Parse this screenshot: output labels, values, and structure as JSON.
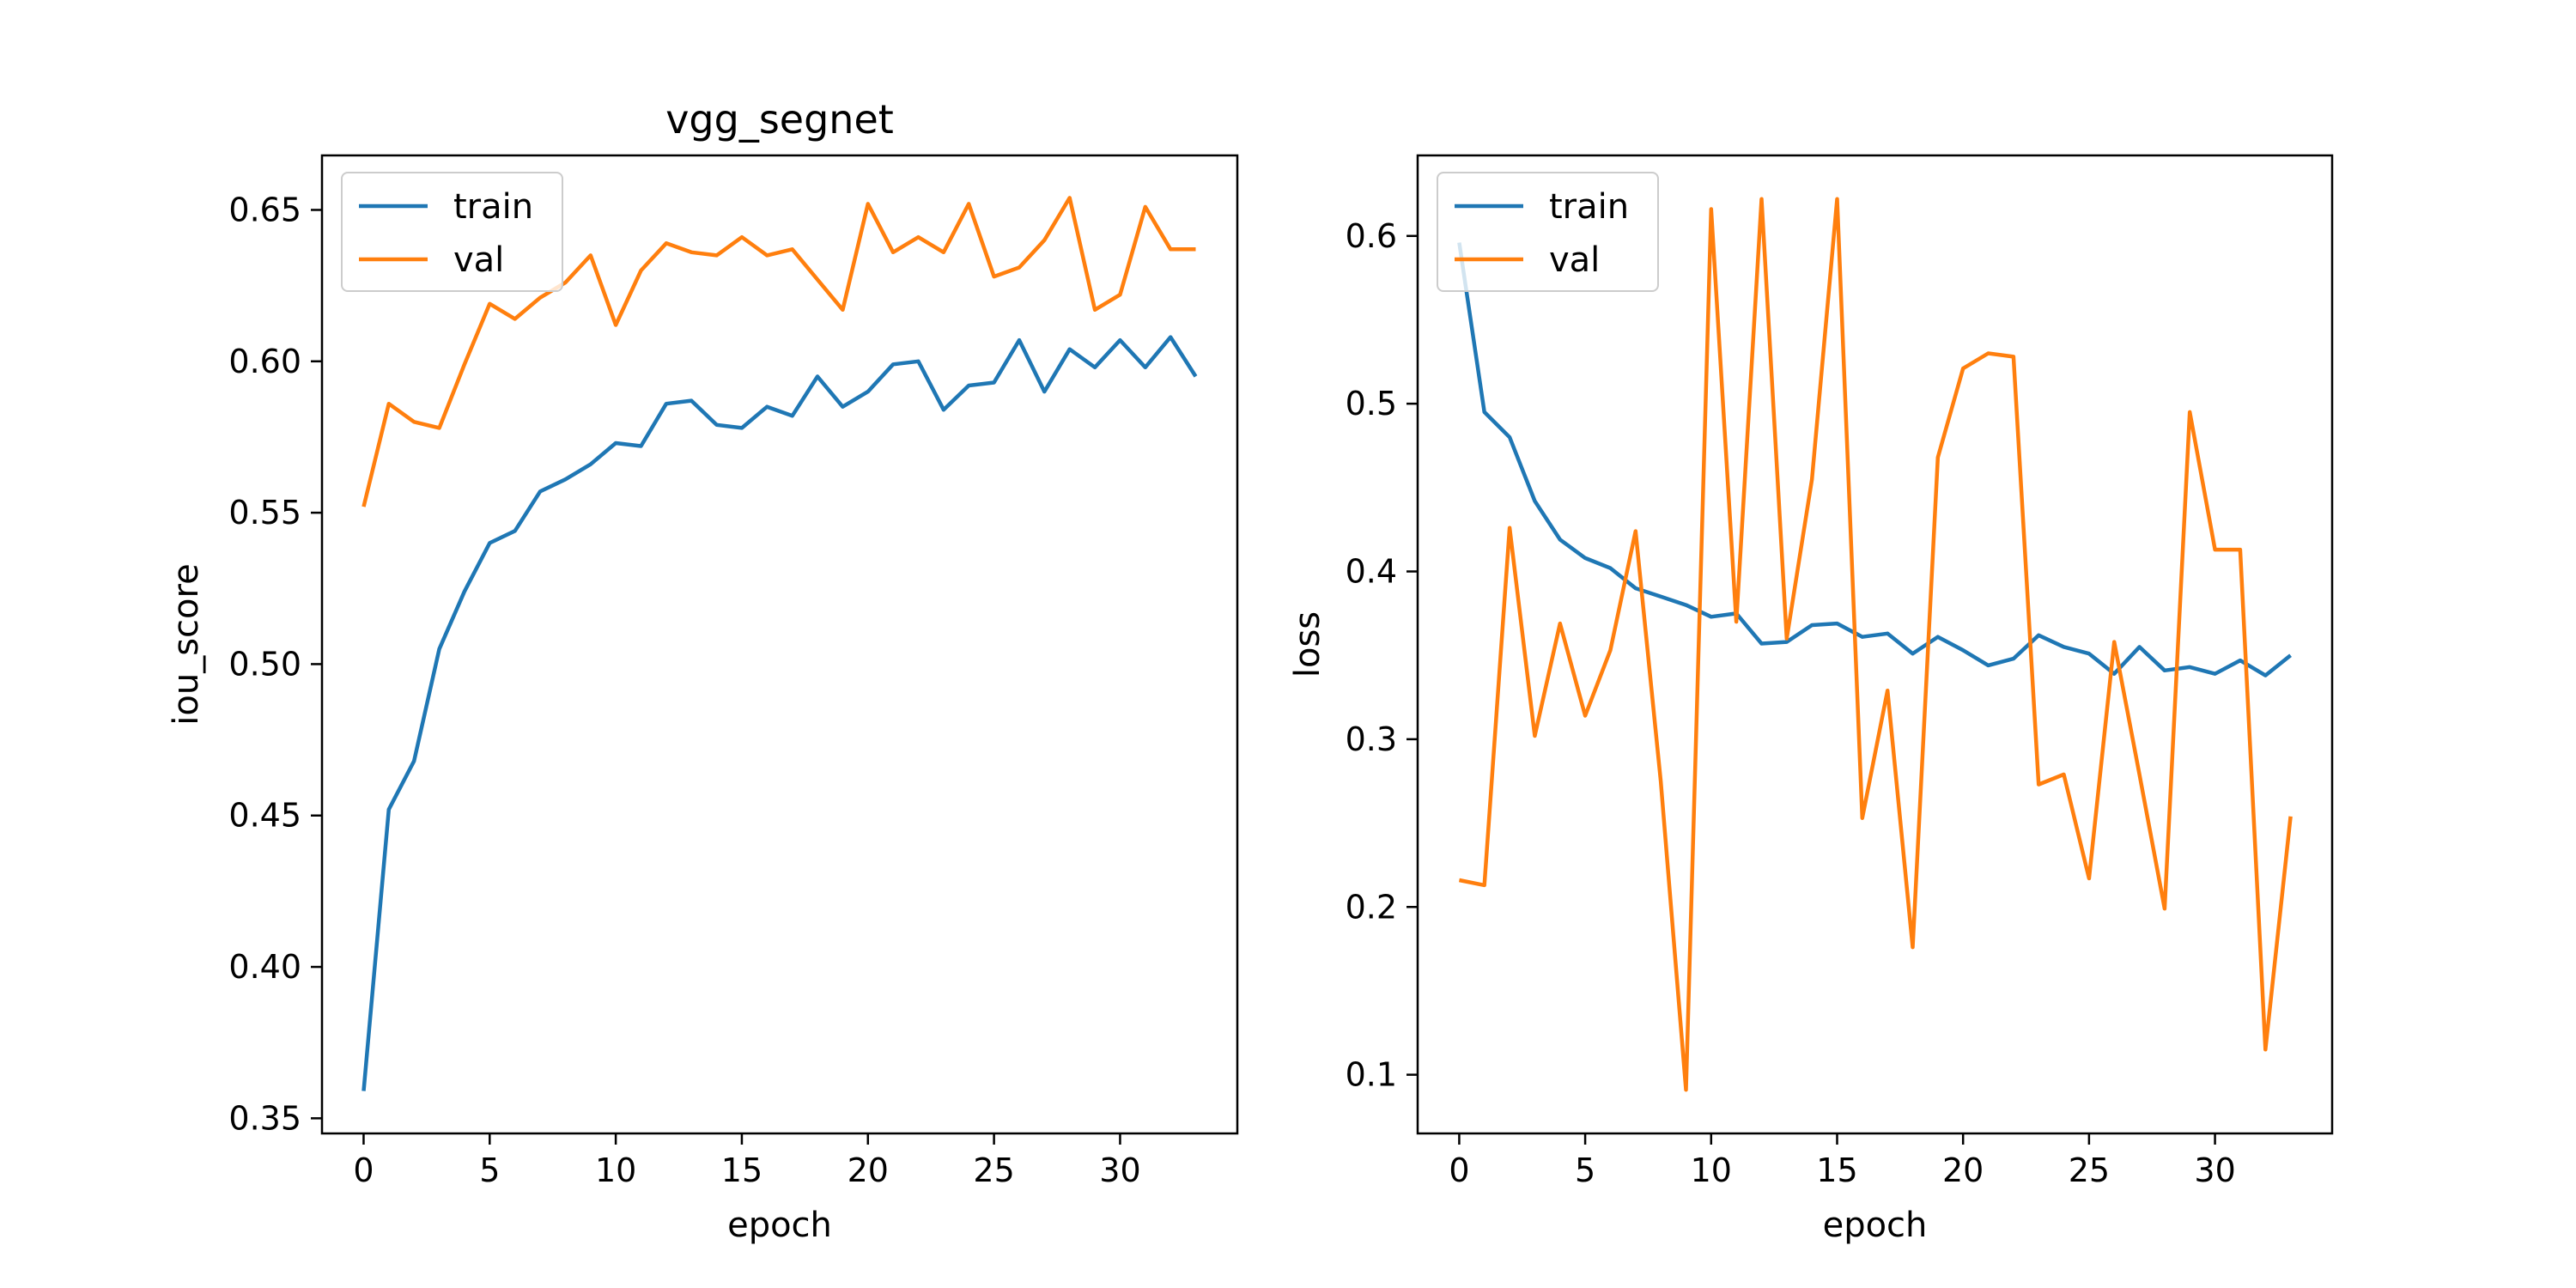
{
  "chart_data": [
    {
      "type": "line",
      "title": "vgg_segnet",
      "xlabel": "epoch",
      "ylabel": "iou_score",
      "xlim": [
        -1.65,
        34.65
      ],
      "ylim": [
        0.345,
        0.668
      ],
      "xticks": [
        0,
        5,
        10,
        15,
        20,
        25,
        30
      ],
      "yticks": [
        0.35,
        0.4,
        0.45,
        0.5,
        0.55,
        0.6,
        0.65
      ],
      "ytick_labels": [
        "0.35",
        "0.40",
        "0.45",
        "0.50",
        "0.55",
        "0.60",
        "0.65"
      ],
      "grid": false,
      "legend": "top-left",
      "x": [
        0,
        1,
        2,
        3,
        4,
        5,
        6,
        7,
        8,
        9,
        10,
        11,
        12,
        13,
        14,
        15,
        16,
        17,
        18,
        19,
        20,
        21,
        22,
        23,
        24,
        25,
        26,
        27,
        28,
        29,
        30,
        31,
        32,
        33
      ],
      "series": [
        {
          "name": "train",
          "color": "#1f77b4",
          "values": [
            0.359,
            0.452,
            0.468,
            0.505,
            0.524,
            0.54,
            0.544,
            0.557,
            0.561,
            0.566,
            0.573,
            0.572,
            0.586,
            0.587,
            0.579,
            0.578,
            0.585,
            0.582,
            0.595,
            0.585,
            0.59,
            0.599,
            0.6,
            0.584,
            0.592,
            0.593,
            0.607,
            0.59,
            0.604,
            0.598,
            0.607,
            0.598,
            0.608,
            0.595
          ]
        },
        {
          "name": "val",
          "color": "#ff7f0e",
          "values": [
            0.552,
            0.586,
            0.58,
            0.578,
            0.599,
            0.619,
            0.614,
            0.621,
            0.626,
            0.635,
            0.612,
            0.63,
            0.639,
            0.636,
            0.635,
            0.641,
            0.635,
            0.637,
            0.627,
            0.617,
            0.652,
            0.636,
            0.641,
            0.636,
            0.652,
            0.628,
            0.631,
            0.64,
            0.654,
            0.617,
            0.622,
            0.651,
            0.637,
            0.637
          ]
        }
      ]
    },
    {
      "type": "line",
      "title": "",
      "xlabel": "epoch",
      "ylabel": "loss",
      "xlim": [
        -1.65,
        34.65
      ],
      "ylim": [
        0.065,
        0.648
      ],
      "xticks": [
        0,
        5,
        10,
        15,
        20,
        25,
        30
      ],
      "yticks": [
        0.1,
        0.2,
        0.3,
        0.4,
        0.5,
        0.6
      ],
      "ytick_labels": [
        "0.1",
        "0.2",
        "0.3",
        "0.4",
        "0.5",
        "0.6"
      ],
      "grid": false,
      "legend": "top-left",
      "x": [
        0,
        1,
        2,
        3,
        4,
        5,
        6,
        7,
        8,
        9,
        10,
        11,
        12,
        13,
        14,
        15,
        16,
        17,
        18,
        19,
        20,
        21,
        22,
        23,
        24,
        25,
        26,
        27,
        28,
        29,
        30,
        31,
        32,
        33
      ],
      "series": [
        {
          "name": "train",
          "color": "#1f77b4",
          "values": [
            0.596,
            0.495,
            0.48,
            0.442,
            0.419,
            0.408,
            0.402,
            0.39,
            0.385,
            0.38,
            0.373,
            0.375,
            0.357,
            0.358,
            0.368,
            0.369,
            0.361,
            0.363,
            0.351,
            0.361,
            0.353,
            0.344,
            0.348,
            0.362,
            0.355,
            0.351,
            0.339,
            0.355,
            0.341,
            0.343,
            0.339,
            0.347,
            0.338,
            0.35
          ]
        },
        {
          "name": "val",
          "color": "#ff7f0e",
          "values": [
            0.216,
            0.213,
            0.426,
            0.302,
            0.369,
            0.314,
            0.353,
            0.424,
            0.275,
            0.091,
            0.616,
            0.37,
            0.622,
            0.36,
            0.455,
            0.622,
            0.253,
            0.329,
            0.176,
            0.468,
            0.521,
            0.53,
            0.528,
            0.273,
            0.279,
            0.217,
            0.358,
            0.279,
            0.199,
            0.495,
            0.413,
            0.413,
            0.115,
            0.254
          ]
        }
      ]
    }
  ]
}
